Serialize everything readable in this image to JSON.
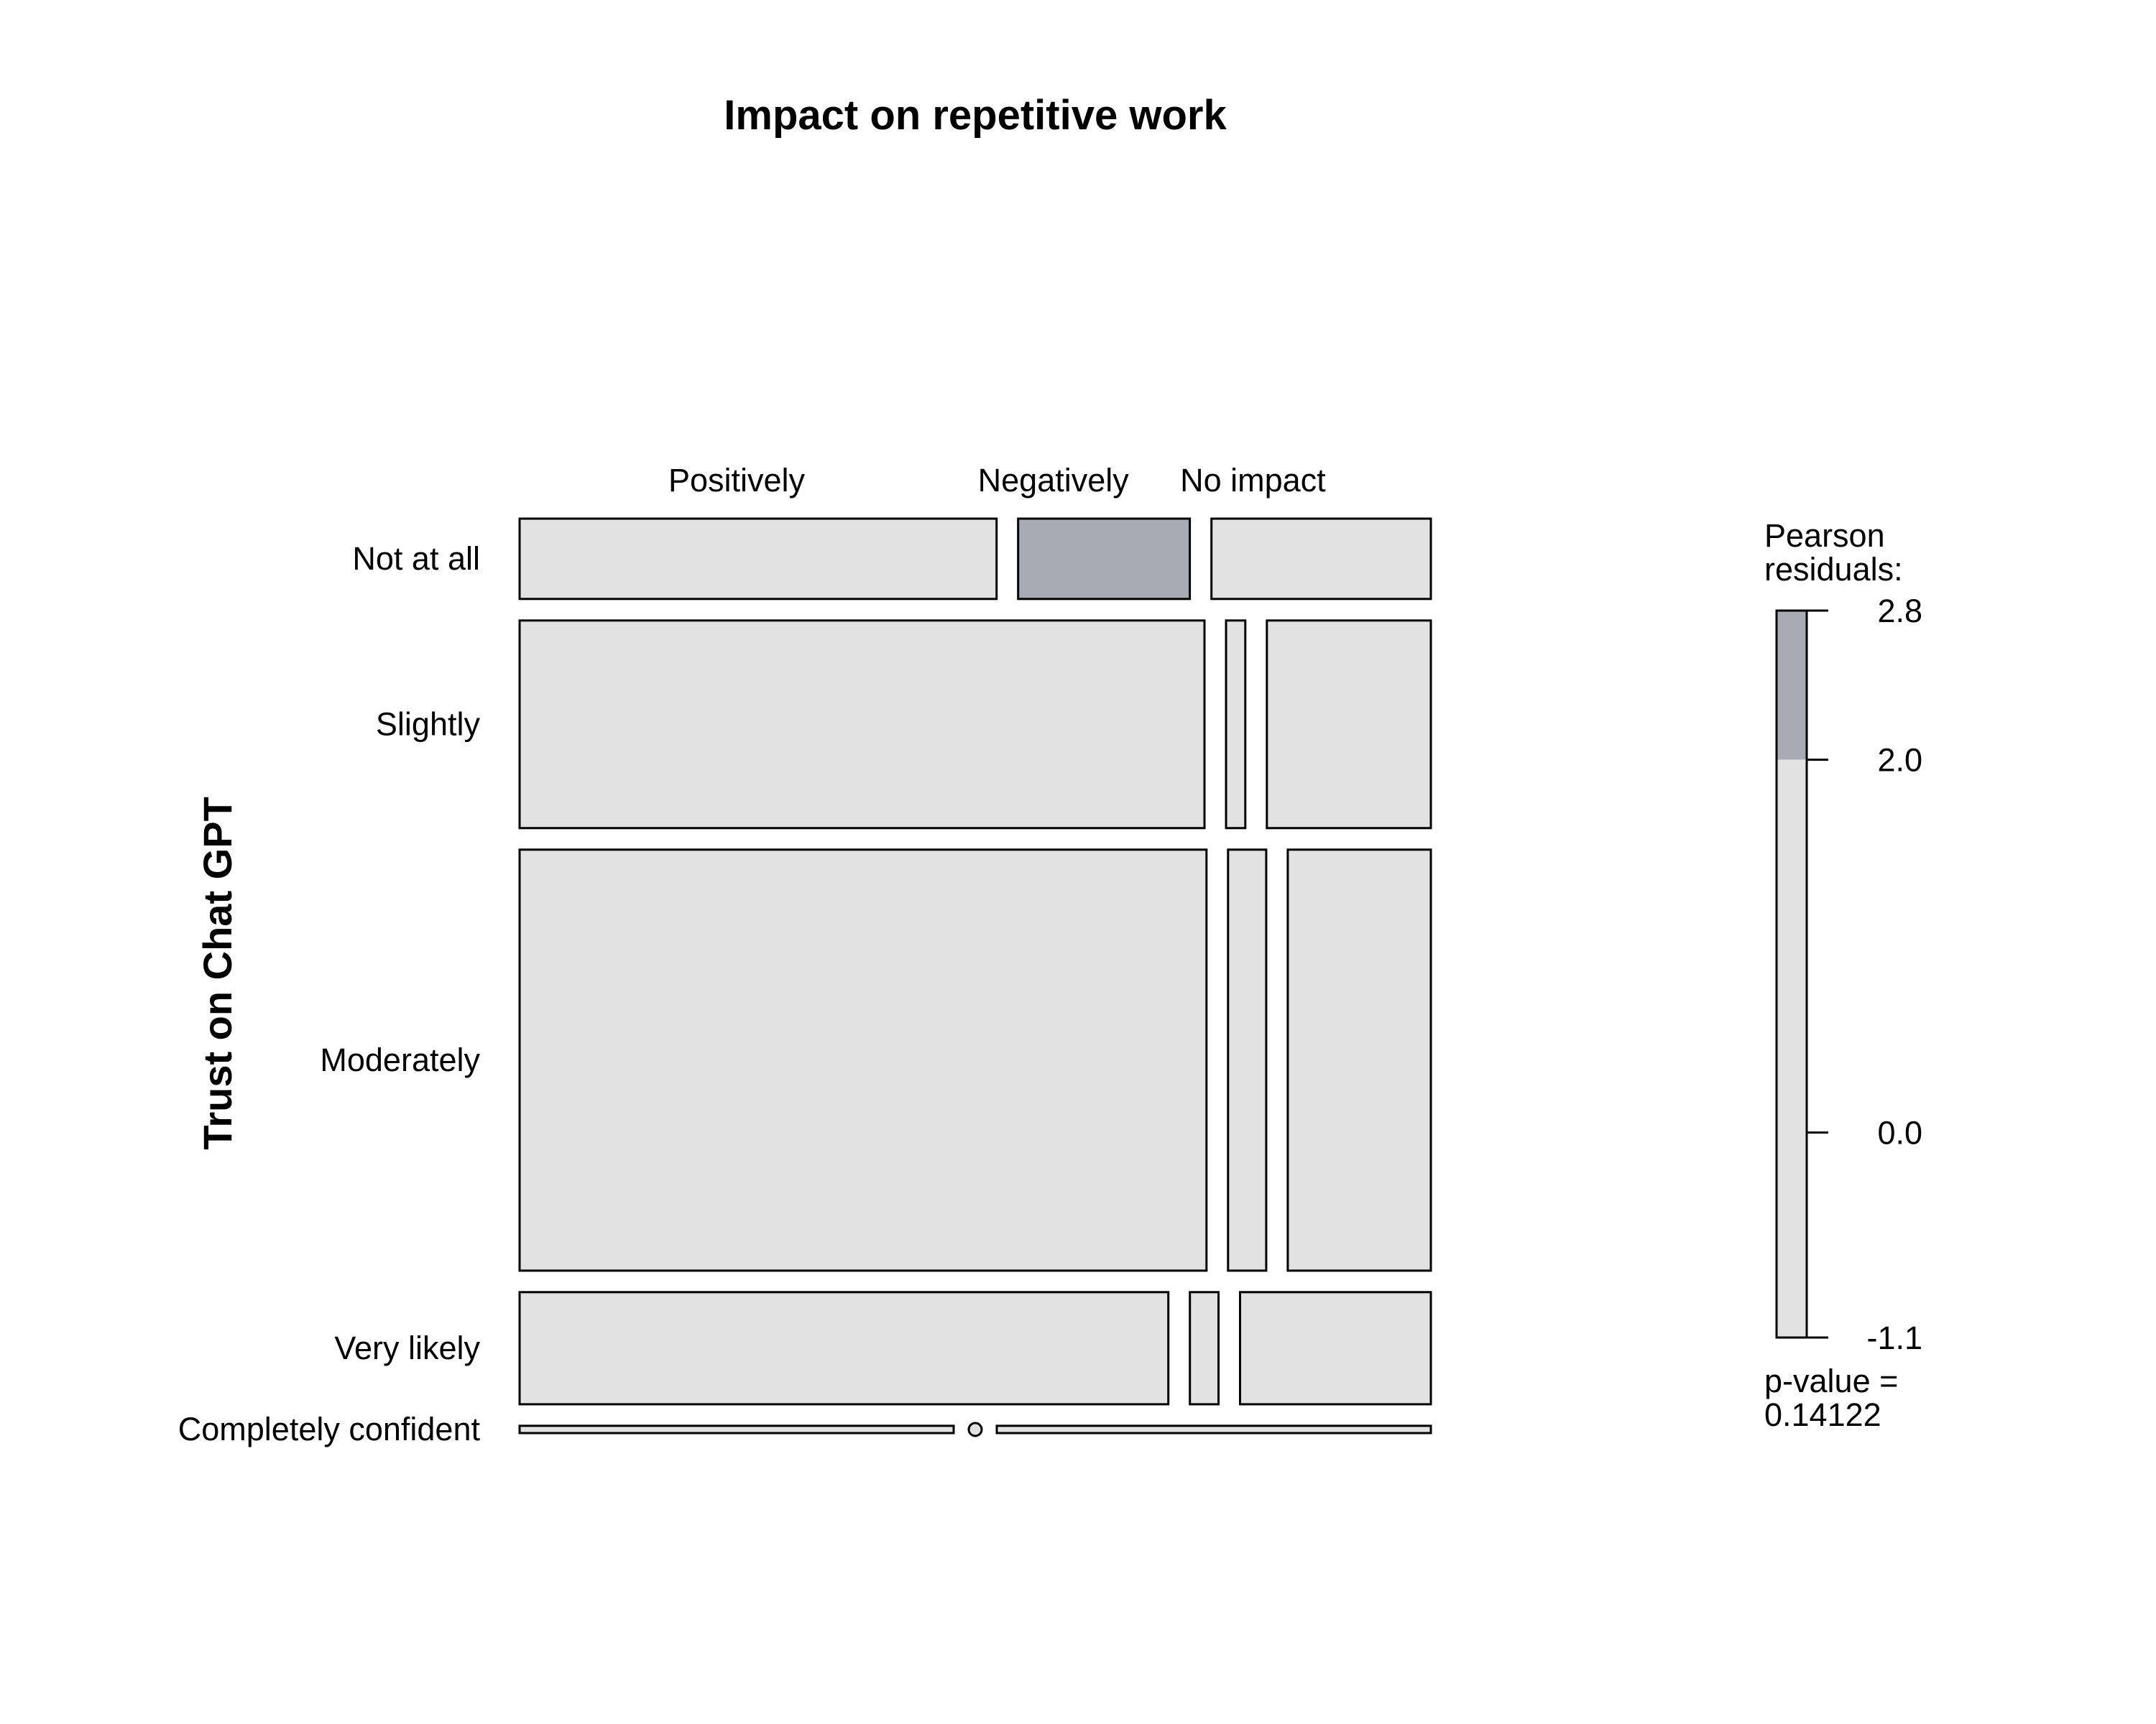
{
  "chart_data": {
    "type": "mosaic",
    "title": "Impact on repetitive work",
    "xlabel": "",
    "ylabel": "Trust on Chat GPT",
    "columns": [
      "Positively",
      "Negatively",
      "No impact"
    ],
    "rows": [
      "Not at all",
      "Slightly",
      "Moderately",
      "Very likely",
      "Completely confident"
    ],
    "row_proportions": [
      0.111,
      0.287,
      0.582,
      0.155,
      0.01
    ],
    "cell_widths": [
      [
        0.5,
        0.18,
        0.23
      ],
      [
        0.71,
        0.02,
        0.17
      ],
      [
        0.72,
        0.04,
        0.15
      ],
      [
        0.68,
        0.03,
        0.2
      ],
      [
        0.46,
        0.0,
        0.46
      ]
    ],
    "residual_levels": [
      [
        0,
        1,
        0
      ],
      [
        0,
        0,
        0
      ],
      [
        0,
        0,
        0
      ],
      [
        0,
        0,
        0
      ],
      [
        0,
        0,
        0
      ]
    ],
    "legend": {
      "title_line1": "Pearson",
      "title_line2": "residuals:",
      "min": -1.1,
      "max": 2.8,
      "ticks": [
        "2.8",
        "2.0",
        "0.0",
        "-1.1"
      ],
      "tick_values": [
        2.8,
        2.0,
        0.0,
        -1.1
      ],
      "shade_from": 2.0,
      "pvalue_line1": "p-value =",
      "pvalue_line2": "0.14122"
    },
    "colors": {
      "neutral": "#e2e2e2",
      "positive": "#a9abb4",
      "border": "#000000"
    }
  }
}
